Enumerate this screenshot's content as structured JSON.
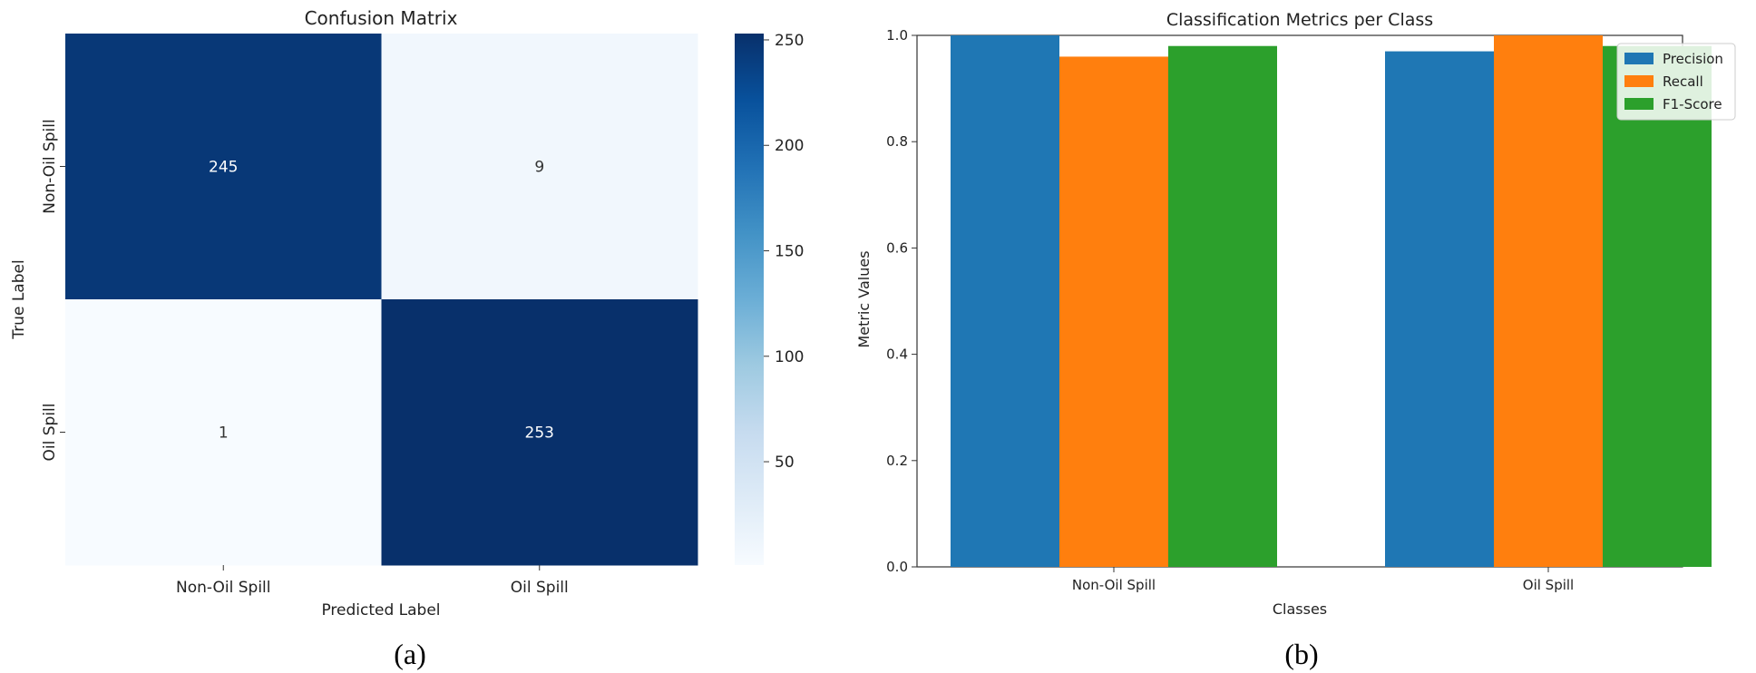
{
  "chart_data": [
    {
      "type": "heatmap",
      "title": "Confusion Matrix",
      "xlabel": "Predicted Label",
      "ylabel": "True Label",
      "x_categories": [
        "Non-Oil Spill",
        "Oil Spill"
      ],
      "y_categories": [
        "Non-Oil Spill",
        "Oil Spill"
      ],
      "values": [
        [
          245,
          9
        ],
        [
          1,
          253
        ]
      ],
      "colorbar": {
        "min": 1,
        "max": 253,
        "ticks": [
          50,
          100,
          150,
          200,
          250
        ]
      },
      "colormap": [
        "#f7fbff",
        "#deebf7",
        "#c6dbef",
        "#9ecae1",
        "#6baed6",
        "#4292c6",
        "#2171b5",
        "#08519c",
        "#08306b"
      ],
      "caption": "(a)"
    },
    {
      "type": "bar",
      "title": "Classification Metrics per Class",
      "xlabel": "Classes",
      "ylabel": "Metric Values",
      "categories": [
        "Non-Oil Spill",
        "Oil Spill"
      ],
      "series": [
        {
          "name": "Precision",
          "values": [
            1.0,
            0.97
          ],
          "color": "#1f77b4"
        },
        {
          "name": "Recall",
          "values": [
            0.96,
            1.0
          ],
          "color": "#ff7f0e"
        },
        {
          "name": "F1-Score",
          "values": [
            0.98,
            0.98
          ],
          "color": "#2ca02c"
        }
      ],
      "ylim": [
        0,
        1.0
      ],
      "yticks": [
        0.0,
        0.2,
        0.4,
        0.6,
        0.8,
        1.0
      ],
      "ytick_labels": [
        "0.0",
        "0.2",
        "0.4",
        "0.6",
        "0.8",
        "1.0"
      ],
      "legend": "top-right",
      "caption": "(b)"
    }
  ]
}
